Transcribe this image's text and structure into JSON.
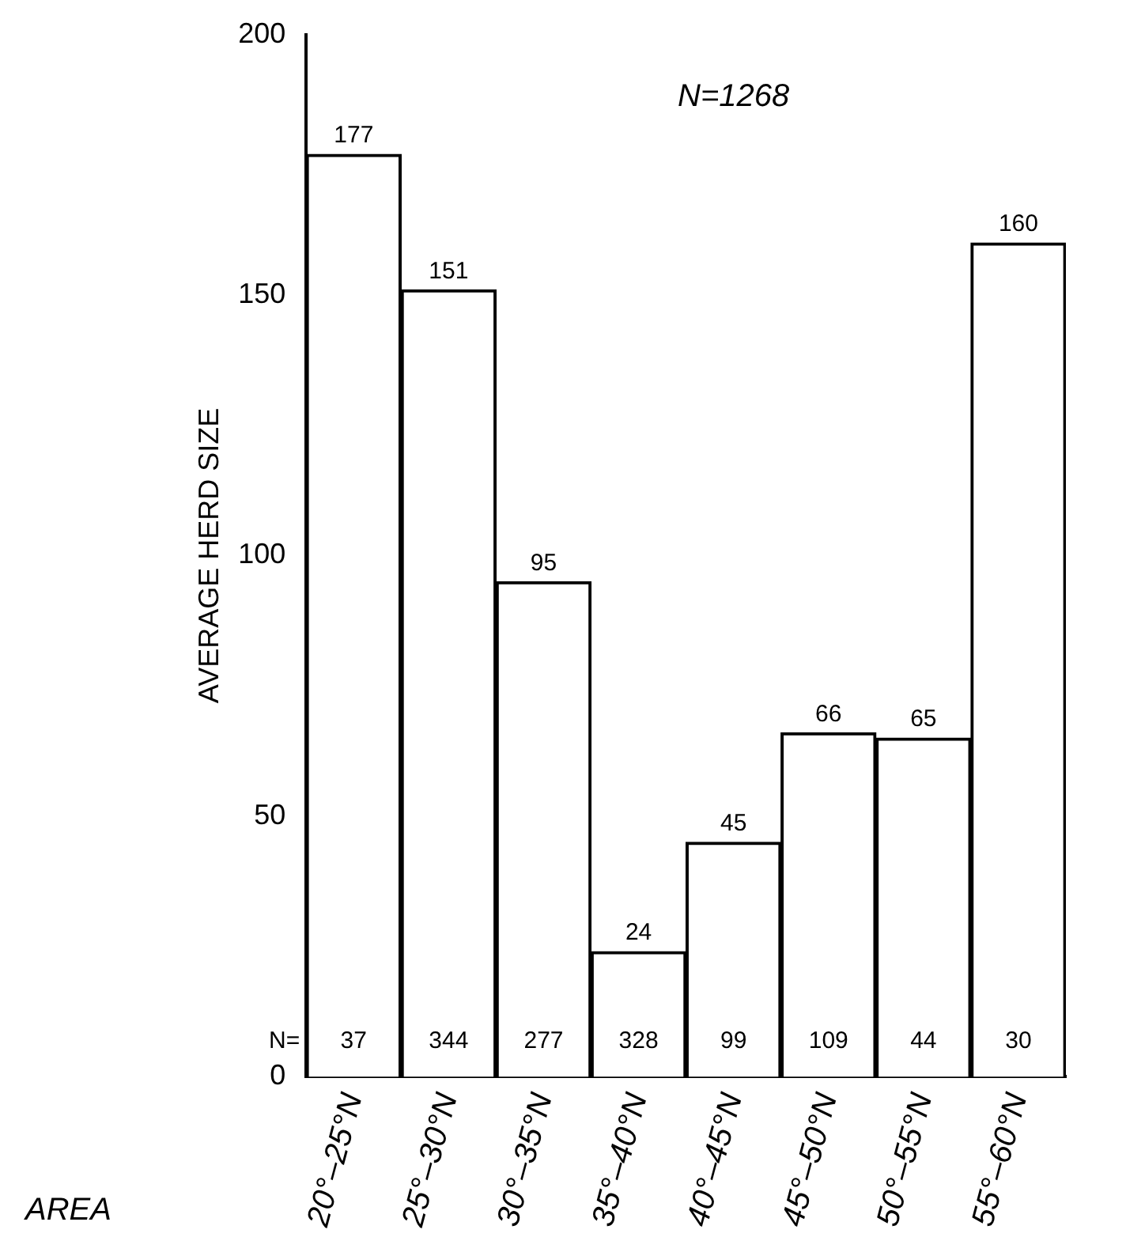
{
  "chart_data": {
    "type": "bar",
    "xlabel": "AREA",
    "ylabel": "AVERAGE HERD SIZE",
    "categories": [
      "20°–25°N",
      "25°–30°N",
      "30°–35°N",
      "35°–40°N",
      "40°–45°N",
      "45°–50°N",
      "50°–55°N",
      "55°–60°N"
    ],
    "values": [
      177,
      151,
      95,
      24,
      45,
      66,
      65,
      160
    ],
    "color": "#ffffff",
    "data_labels": true,
    "ylim": [
      0,
      200
    ],
    "yticks": [
      0,
      50,
      100,
      150,
      200
    ],
    "grid": false,
    "legend": false,
    "annotations": [
      "N=1268",
      "N=",
      "37",
      "344",
      "277",
      "328",
      "99",
      "109",
      "44",
      "30"
    ]
  }
}
